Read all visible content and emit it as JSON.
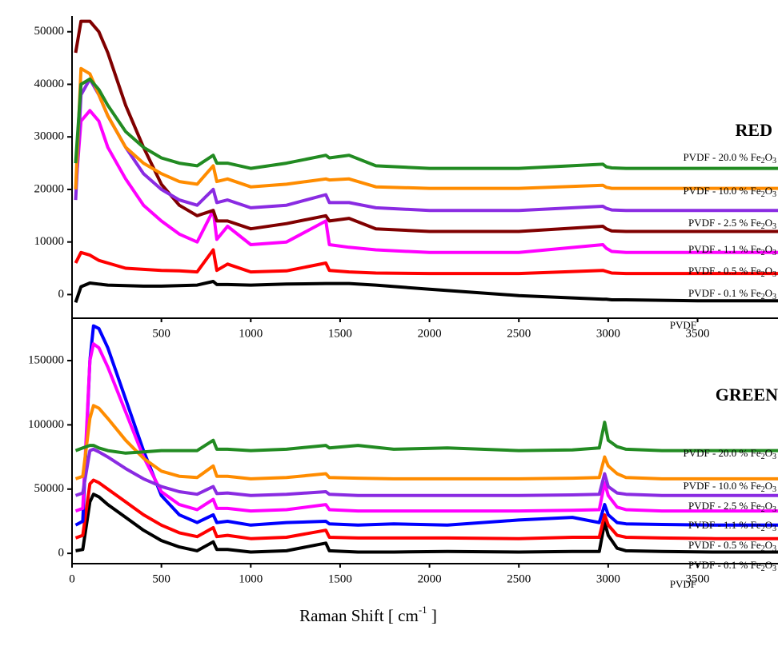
{
  "chart_data": [
    {
      "type": "line",
      "annotation": "RED",
      "annotation_color": "#ff1a1a",
      "xlim": [
        0,
        3950
      ],
      "xticks": [
        500,
        1000,
        1500,
        2000,
        2500,
        3000,
        3500
      ],
      "ylim": [
        -4500,
        53000
      ],
      "yticks": [
        0,
        10000,
        20000,
        30000,
        40000,
        50000
      ],
      "x": [
        20,
        50,
        100,
        150,
        200,
        300,
        400,
        500,
        600,
        700,
        790,
        810,
        870,
        1000,
        1200,
        1420,
        1440,
        1550,
        1700,
        2000,
        2500,
        2970,
        2990,
        3020,
        3100,
        3500,
        3950
      ],
      "series": [
        {
          "name": "PVDF",
          "color": "#000000",
          "values": [
            -1500,
            1500,
            2200,
            2000,
            1800,
            1700,
            1600,
            1600,
            1700,
            1800,
            2500,
            1900,
            1900,
            1800,
            2000,
            2100,
            2100,
            2100,
            1800,
            1000,
            -200,
            -900,
            -900,
            -1000,
            -1000,
            -1200,
            -1200
          ]
        },
        {
          "name": "PVDF - 0.1 % Fe2O3",
          "color": "#ff0000",
          "values": [
            6000,
            8000,
            7500,
            6500,
            6000,
            5000,
            4800,
            4600,
            4500,
            4300,
            8500,
            4600,
            5800,
            4300,
            4500,
            6000,
            4600,
            4300,
            4100,
            4000,
            4000,
            4600,
            4400,
            4100,
            4000,
            4000,
            4000
          ]
        },
        {
          "name": "PVDF - 0.5 % Fe2O3",
          "color": "#ff00ff",
          "values": [
            20000,
            33000,
            35000,
            33000,
            28000,
            22000,
            17000,
            14000,
            11500,
            10000,
            16000,
            10500,
            13000,
            9500,
            10000,
            14000,
            9500,
            9000,
            8500,
            8000,
            8000,
            9500,
            8800,
            8200,
            8000,
            8000,
            8000
          ]
        },
        {
          "name": "PVDF - 1.1 % Fe2O3",
          "color": "#800000",
          "values": [
            46000,
            52000,
            52000,
            50000,
            46000,
            36000,
            28000,
            21000,
            17000,
            15000,
            16000,
            14000,
            14000,
            12500,
            13500,
            15000,
            14000,
            14500,
            12500,
            12000,
            12000,
            13000,
            12500,
            12100,
            12000,
            12000,
            12000
          ]
        },
        {
          "name": "PVDF - 2.5 % Fe2O3",
          "color": "#8a2be2",
          "values": [
            18000,
            38000,
            41000,
            38000,
            34000,
            28000,
            23000,
            20000,
            18000,
            17000,
            20000,
            17500,
            18000,
            16500,
            17000,
            19000,
            17500,
            17500,
            16500,
            16000,
            16000,
            16800,
            16400,
            16100,
            16000,
            16000,
            16000
          ]
        },
        {
          "name": "PVDF - 10.0 % Fe2O3",
          "color": "#ff8c00",
          "values": [
            20000,
            43000,
            42000,
            38000,
            34000,
            28000,
            25000,
            23000,
            21500,
            21000,
            24500,
            21500,
            22000,
            20500,
            21000,
            22000,
            21800,
            22000,
            20500,
            20200,
            20200,
            20800,
            20400,
            20200,
            20200,
            20200,
            20200
          ]
        },
        {
          "name": "PVDF - 20.0 % Fe2O3",
          "color": "#228b22",
          "values": [
            25000,
            40000,
            41000,
            39000,
            36000,
            31000,
            28000,
            26000,
            25000,
            24500,
            26500,
            25000,
            25000,
            24000,
            25000,
            26500,
            26000,
            26500,
            24500,
            24000,
            24000,
            24800,
            24300,
            24100,
            24000,
            24000,
            24000
          ]
        }
      ]
    },
    {
      "type": "line",
      "annotation": "GREEN",
      "annotation_color": "#1a8a8a",
      "xlabel": "Raman Shift [ cm",
      "xlabel_sup": "-1",
      "xlabel_end": " ]",
      "xlim": [
        0,
        3950
      ],
      "xticks": [
        0,
        500,
        1000,
        1500,
        2000,
        2500,
        3000,
        3500
      ],
      "ylim": [
        -8000,
        183000
      ],
      "yticks": [
        0,
        50000,
        100000,
        150000
      ],
      "x": [
        20,
        60,
        100,
        120,
        150,
        200,
        300,
        400,
        500,
        600,
        700,
        790,
        810,
        870,
        1000,
        1200,
        1420,
        1440,
        1600,
        1800,
        2100,
        2500,
        2800,
        2950,
        2980,
        3000,
        3050,
        3100,
        3300,
        3600,
        3950
      ],
      "series": [
        {
          "name": "PVDF",
          "color": "#000000",
          "values": [
            2000,
            3000,
            40000,
            46000,
            44000,
            38000,
            28000,
            18000,
            10000,
            5000,
            2000,
            9000,
            3000,
            3000,
            1000,
            2000,
            8000,
            2000,
            1000,
            1000,
            1500,
            1000,
            1500,
            1500,
            24000,
            14000,
            4000,
            2000,
            1500,
            1000,
            1000
          ]
        },
        {
          "name": "PVDF - 0.1 % Fe2O3",
          "color": "#ff0000",
          "values": [
            12000,
            14000,
            54000,
            57000,
            55000,
            50000,
            40000,
            30000,
            22000,
            16000,
            13000,
            20000,
            13000,
            14000,
            11500,
            12500,
            18000,
            12500,
            12000,
            12000,
            12000,
            11500,
            12500,
            12500,
            30000,
            22000,
            14000,
            12500,
            12000,
            11500,
            11500
          ]
        },
        {
          "name": "PVDF - 0.5 % Fe2O3",
          "color": "#0000ff",
          "values": [
            22000,
            25000,
            150000,
            177000,
            175000,
            160000,
            120000,
            80000,
            45000,
            30000,
            24000,
            30000,
            24000,
            25000,
            22000,
            24000,
            25000,
            23000,
            22000,
            23000,
            22000,
            26000,
            28000,
            24000,
            38000,
            30000,
            24000,
            23000,
            22500,
            22000,
            22000
          ]
        },
        {
          "name": "PVDF - 1.1 % Fe2O3",
          "color": "#ff00ff",
          "values": [
            33000,
            35000,
            150000,
            163000,
            160000,
            145000,
            110000,
            75000,
            48000,
            38000,
            34000,
            42000,
            35000,
            35000,
            33000,
            34000,
            38000,
            34000,
            33000,
            33000,
            33000,
            33000,
            33500,
            34000,
            55000,
            45000,
            36000,
            34000,
            33000,
            33000,
            33000
          ]
        },
        {
          "name": "PVDF - 2.5 % Fe2O3",
          "color": "#8a2be2",
          "values": [
            45000,
            47000,
            80000,
            81000,
            79000,
            75000,
            66000,
            58000,
            52000,
            48000,
            46000,
            52000,
            46500,
            47000,
            45000,
            46000,
            48000,
            46000,
            45000,
            45000,
            45000,
            45000,
            45500,
            46000,
            62000,
            52000,
            47000,
            46000,
            45000,
            45000,
            45000
          ]
        },
        {
          "name": "PVDF - 10.0 % Fe2O3",
          "color": "#ff8c00",
          "values": [
            58000,
            60000,
            105000,
            115000,
            113000,
            105000,
            88000,
            74000,
            64000,
            60000,
            59000,
            68000,
            60000,
            60000,
            58000,
            59000,
            62000,
            59000,
            58500,
            58000,
            58000,
            58000,
            58500,
            59000,
            75000,
            68000,
            62000,
            59000,
            58000,
            58000,
            58000
          ]
        },
        {
          "name": "PVDF - 20.0 % Fe2O3",
          "color": "#228b22",
          "values": [
            80000,
            82000,
            84000,
            84000,
            82000,
            80000,
            78000,
            79000,
            80000,
            80000,
            80000,
            88000,
            81000,
            81000,
            80000,
            81000,
            84000,
            82000,
            84000,
            81000,
            82000,
            80000,
            80500,
            82000,
            102000,
            88000,
            83000,
            81000,
            80000,
            80000,
            80000
          ]
        }
      ]
    }
  ]
}
